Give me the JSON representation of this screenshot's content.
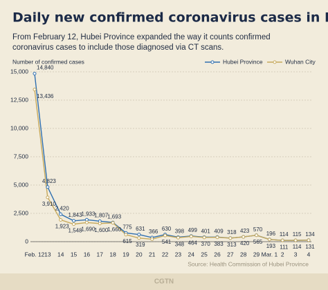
{
  "chart_data": {
    "type": "line",
    "title": "Daily new confirmed coronavirus cases in Hubei",
    "subtitle": [
      "From February 12, Hubei Province expanded the way it counts confirmed",
      "coronavirus cases to include those diagnosed via CT scans."
    ],
    "y_axis_label": "Number of confirmed cases",
    "source": "Source: Health Commission of Hubei Province",
    "footer": "CGTN",
    "categories": [
      "Feb. 12",
      "13",
      "14",
      "15",
      "16",
      "17",
      "18",
      "19",
      "20",
      "21",
      "22",
      "23",
      "24",
      "25",
      "26",
      "27",
      "28",
      "29",
      "Mar. 1",
      "2",
      "3",
      "4"
    ],
    "series": [
      {
        "name": "Hubei Province",
        "color": "#2f6fb0",
        "values": [
          14840,
          4823,
          2420,
          1843,
          1933,
          1807,
          1693,
          775,
          631,
          366,
          630,
          398,
          499,
          401,
          409,
          318,
          423,
          570,
          196,
          114,
          115,
          134
        ],
        "value_labels": [
          "14,840",
          "4,823",
          "2,420",
          "1,843",
          "1,933",
          "1,807",
          "1,693",
          "775",
          "631",
          "366",
          "630",
          "398",
          "499",
          "401",
          "409",
          "318",
          "423",
          "570",
          "196",
          "114",
          "115",
          "134"
        ]
      },
      {
        "name": "Wuhan City",
        "color": "#c6a95c",
        "values": [
          13436,
          3910,
          1923,
          1548,
          1690,
          1600,
          1660,
          615,
          319,
          220,
          541,
          348,
          464,
          370,
          383,
          313,
          420,
          565,
          193,
          111,
          114,
          131
        ],
        "value_labels": [
          "13,436",
          "3,910",
          "1,923",
          "1,548",
          "1,690",
          "1,600",
          "1,660",
          "615",
          "319",
          null,
          "541",
          "348",
          "464",
          "370",
          "383",
          "313",
          "420",
          "565",
          "193",
          "111",
          "114",
          "131"
        ]
      }
    ],
    "ylim": [
      0,
      15000
    ],
    "yticks": [
      0,
      {
        "value": 2500,
        "label": "2,500"
      },
      {
        "value": 5000,
        "label": "5,000"
      },
      {
        "value": 7500,
        "label": "7,500"
      },
      {
        "value": 10000,
        "label": "10,000"
      },
      {
        "value": 12500,
        "label": "12,500"
      },
      {
        "value": 15000,
        "label": "15,000"
      }
    ],
    "grid": true,
    "legend": "top-right"
  }
}
